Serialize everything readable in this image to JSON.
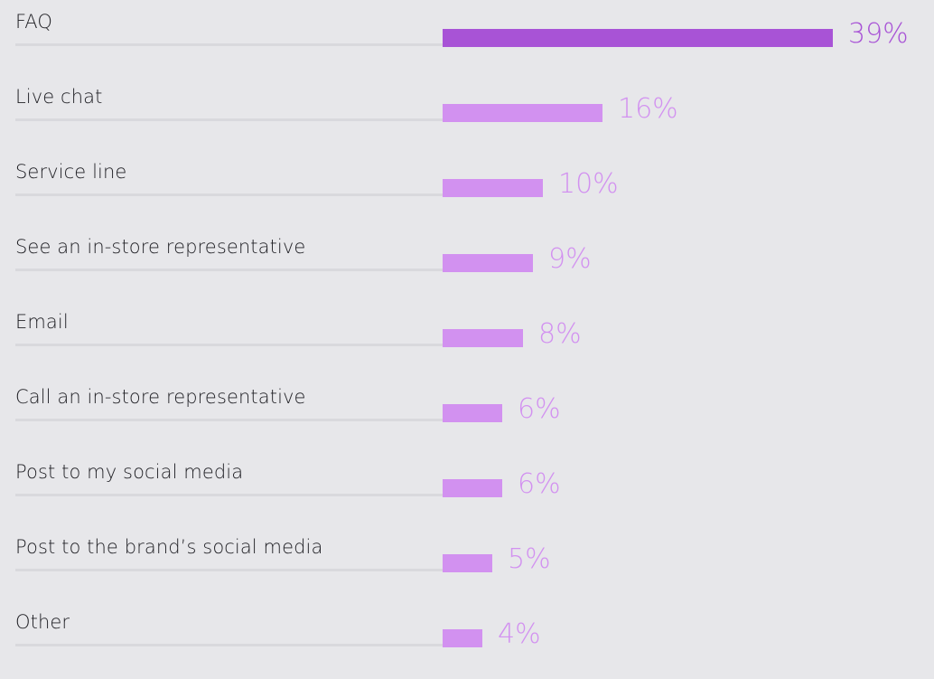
{
  "chart_data": {
    "type": "bar",
    "orientation": "horizontal",
    "categories": [
      "FAQ",
      "Live chat",
      "Service line",
      "See an in-store representative",
      "Email",
      "Call an in-store representative",
      "Post to my social media",
      "Post to the brand’s social media",
      "Other"
    ],
    "values": [
      39,
      16,
      10,
      9,
      8,
      6,
      6,
      5,
      4
    ],
    "value_labels": [
      "39%",
      "16%",
      "10%",
      "9%",
      "8%",
      "6%",
      "6%",
      "5%",
      "4%"
    ],
    "unit": "%",
    "xlim": [
      0,
      39
    ],
    "grid": false,
    "legend": "none",
    "title": "",
    "xlabel": "",
    "ylabel": ""
  },
  "colors": {
    "background": "#e7e7ea",
    "bar_highlight": "#a853d6",
    "bar": "#d291f0",
    "label_text": "#1f1f24",
    "rule": "#d9d9dd"
  }
}
